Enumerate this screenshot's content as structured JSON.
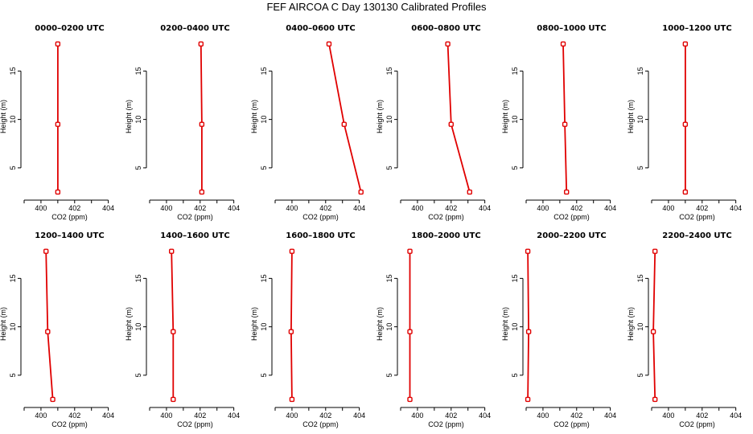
{
  "figure_title": "FEF  AIRCOA C  Day 130130  Calibrated Profiles",
  "chart_data": {
    "type": "line",
    "title": "FEF  AIRCOA C  Day 130130  Calibrated Profiles",
    "xlabel": "CO2 (ppm)",
    "ylabel": "Height (m)",
    "xlim": [
      399,
      404.4
    ],
    "ylim": [
      2,
      18.6
    ],
    "xticks": [
      399,
      400,
      401,
      402,
      403,
      404
    ],
    "xtick_labels": [
      "400",
      "402",
      "404"
    ],
    "yticks": [
      5,
      10,
      15
    ],
    "series_color": "#e00000",
    "panels": [
      {
        "title": "0000–0200 UTC",
        "points": [
          {
            "x": 401.0,
            "y": 2.5
          },
          {
            "x": 401.0,
            "y": 9.5
          },
          {
            "x": 401.0,
            "y": 17.8
          }
        ]
      },
      {
        "title": "0200–0400 UTC",
        "points": [
          {
            "x": 402.1,
            "y": 2.5
          },
          {
            "x": 402.1,
            "y": 9.5
          },
          {
            "x": 402.05,
            "y": 17.8
          }
        ]
      },
      {
        "title": "0400–0600 UTC",
        "points": [
          {
            "x": 404.1,
            "y": 2.5
          },
          {
            "x": 403.1,
            "y": 9.5
          },
          {
            "x": 402.2,
            "y": 17.8
          }
        ]
      },
      {
        "title": "0600–0800 UTC",
        "points": [
          {
            "x": 403.1,
            "y": 2.5
          },
          {
            "x": 402.0,
            "y": 9.5
          },
          {
            "x": 401.8,
            "y": 17.8
          }
        ]
      },
      {
        "title": "0800–1000 UTC",
        "points": [
          {
            "x": 401.4,
            "y": 2.5
          },
          {
            "x": 401.3,
            "y": 9.5
          },
          {
            "x": 401.2,
            "y": 17.8
          }
        ]
      },
      {
        "title": "1000–1200 UTC",
        "points": [
          {
            "x": 401.0,
            "y": 2.5
          },
          {
            "x": 401.0,
            "y": 9.5
          },
          {
            "x": 401.0,
            "y": 17.8
          }
        ]
      },
      {
        "title": "1200–1400 UTC",
        "points": [
          {
            "x": 400.7,
            "y": 2.5
          },
          {
            "x": 400.4,
            "y": 9.5
          },
          {
            "x": 400.3,
            "y": 17.8
          }
        ]
      },
      {
        "title": "1400–1600 UTC",
        "points": [
          {
            "x": 400.4,
            "y": 2.5
          },
          {
            "x": 400.4,
            "y": 9.5
          },
          {
            "x": 400.3,
            "y": 17.8
          }
        ]
      },
      {
        "title": "1600–1800 UTC",
        "points": [
          {
            "x": 400.0,
            "y": 2.5
          },
          {
            "x": 399.95,
            "y": 9.5
          },
          {
            "x": 400.0,
            "y": 17.8
          }
        ]
      },
      {
        "title": "1800–2000 UTC",
        "points": [
          {
            "x": 399.55,
            "y": 2.5
          },
          {
            "x": 399.55,
            "y": 9.5
          },
          {
            "x": 399.55,
            "y": 17.8
          }
        ]
      },
      {
        "title": "2000–2200 UTC",
        "points": [
          {
            "x": 399.1,
            "y": 2.5
          },
          {
            "x": 399.15,
            "y": 9.5
          },
          {
            "x": 399.1,
            "y": 17.8
          }
        ]
      },
      {
        "title": "2200–2400 UTC",
        "points": [
          {
            "x": 399.2,
            "y": 2.5
          },
          {
            "x": 399.1,
            "y": 9.5
          },
          {
            "x": 399.2,
            "y": 17.8
          }
        ]
      }
    ]
  }
}
